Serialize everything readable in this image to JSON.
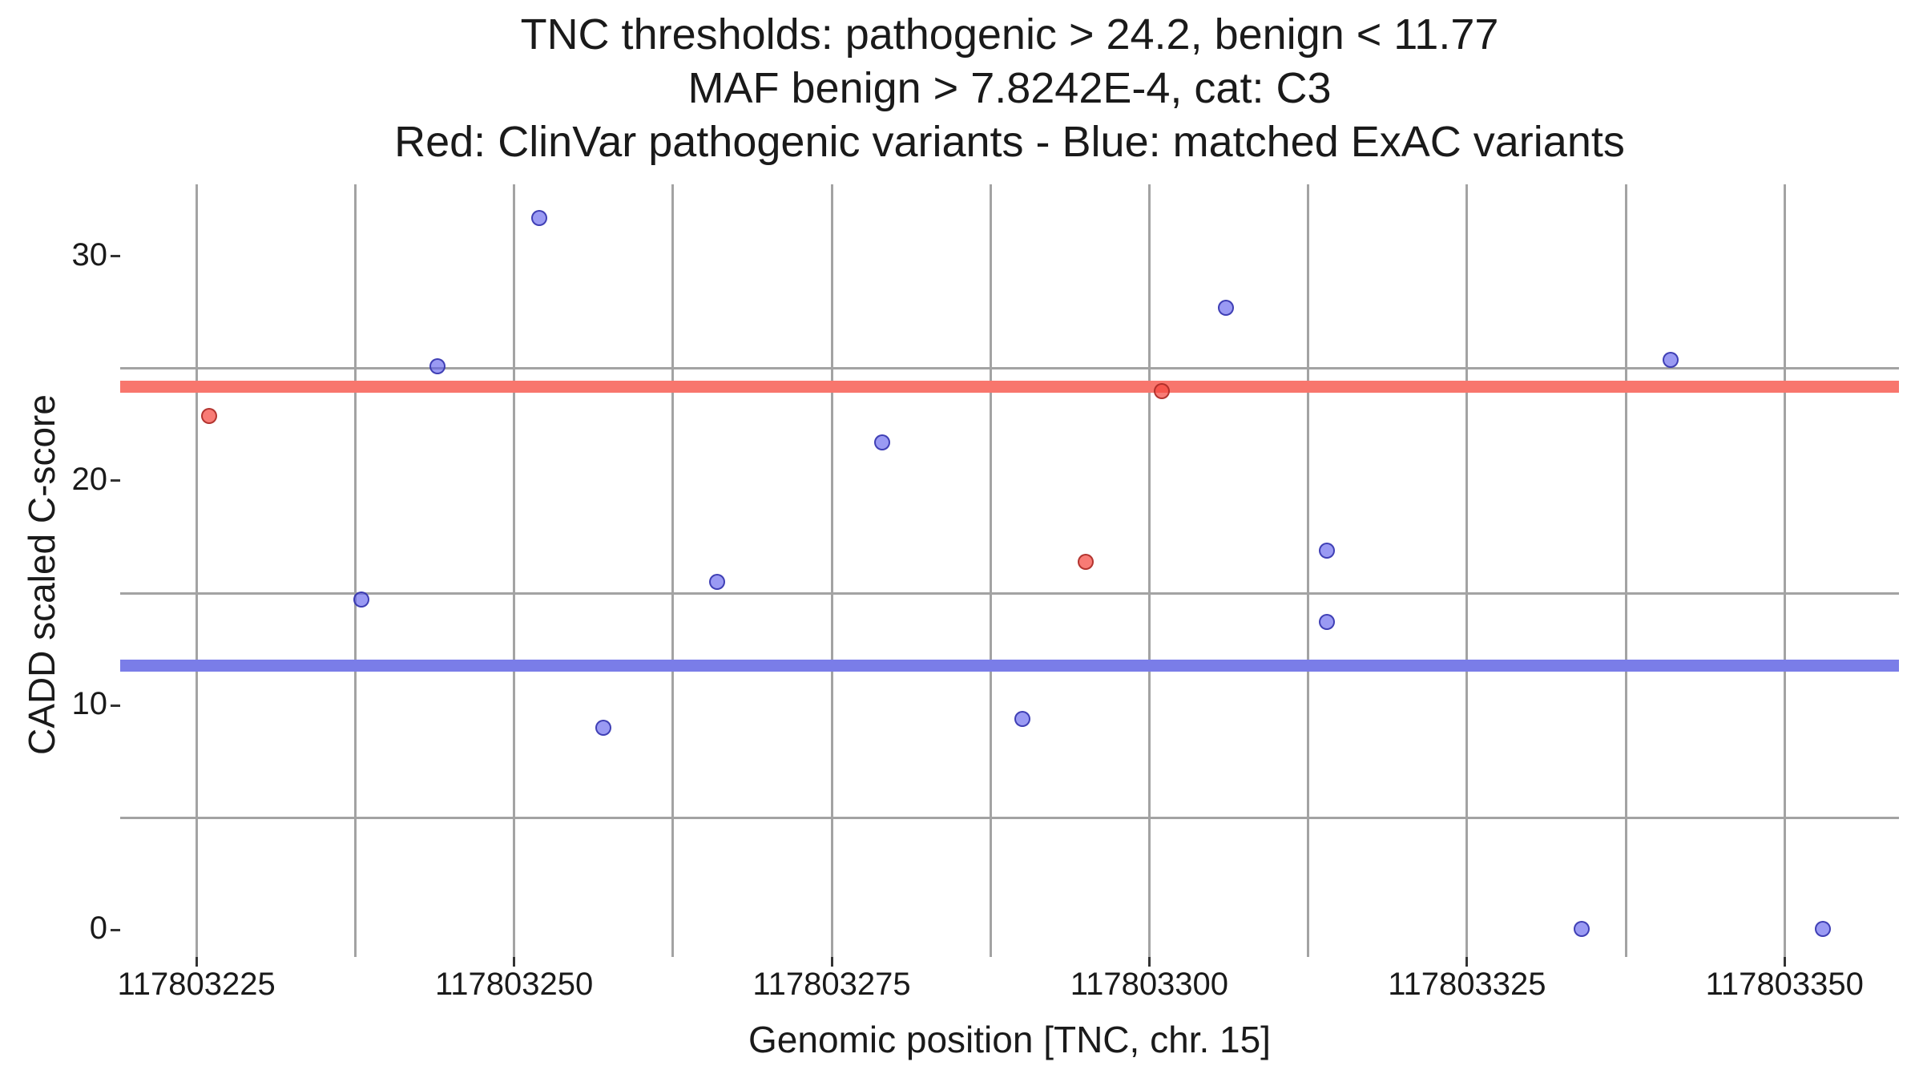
{
  "title": {
    "line1": "TNC thresholds: pathogenic > 24.2, benign < 11.77",
    "line2": "MAF benign > 7.8242E-4, cat: C3",
    "line3": "Red: ClinVar pathogenic variants - Blue: matched ExAC variants"
  },
  "axes": {
    "x_label": "Genomic position [TNC, chr. 15]",
    "y_label": "CADD scaled C-score"
  },
  "chart_data": {
    "type": "scatter",
    "title": "TNC thresholds: pathogenic > 24.2, benign < 11.77 | MAF benign > 7.8242E-4, cat: C3 | Red: ClinVar pathogenic variants - Blue: matched ExAC variants",
    "xlabel": "Genomic position [TNC, chr. 15]",
    "ylabel": "CADD scaled C-score",
    "gene": "TNC",
    "chromosome": "15",
    "category": "C3",
    "maf_benign_threshold": "7.8242E-4",
    "xlim": [
      117803219,
      117803359
    ],
    "ylim": [
      -1.2,
      33.2
    ],
    "x_ticks": [
      117803225,
      117803250,
      117803275,
      117803300,
      117803325,
      117803350
    ],
    "y_ticks": [
      0,
      10,
      20,
      30
    ],
    "grid": {
      "show": true,
      "color": "#a3a3a3",
      "v_start": 117803225,
      "v_end": 117803350,
      "v_step": 12.5,
      "h_lines": [
        5,
        15,
        25
      ]
    },
    "legend_position": "none",
    "threshold_lines": [
      {
        "name": "pathogenic",
        "value": 24.2,
        "color": "#f8766d"
      },
      {
        "name": "benign",
        "value": 11.77,
        "color": "#7a7de8"
      }
    ],
    "series": [
      {
        "name": "ClinVar pathogenic variants",
        "color": "red",
        "points": [
          {
            "x": 117803226,
            "y": 22.9
          },
          {
            "x": 117803295,
            "y": 16.4
          },
          {
            "x": 117803301,
            "y": 24.0
          }
        ]
      },
      {
        "name": "matched ExAC variants",
        "color": "blue",
        "points": [
          {
            "x": 117803238,
            "y": 14.7
          },
          {
            "x": 117803244,
            "y": 25.1
          },
          {
            "x": 117803252,
            "y": 31.7
          },
          {
            "x": 117803257,
            "y": 9.0
          },
          {
            "x": 117803266,
            "y": 15.5
          },
          {
            "x": 117803279,
            "y": 21.7
          },
          {
            "x": 117803290,
            "y": 9.4
          },
          {
            "x": 117803306,
            "y": 27.7
          },
          {
            "x": 117803314,
            "y": 16.9
          },
          {
            "x": 117803314,
            "y": 13.7
          },
          {
            "x": 117803334,
            "y": 0.05
          },
          {
            "x": 117803341,
            "y": 25.4
          },
          {
            "x": 117803353,
            "y": 0.05
          }
        ]
      }
    ]
  }
}
